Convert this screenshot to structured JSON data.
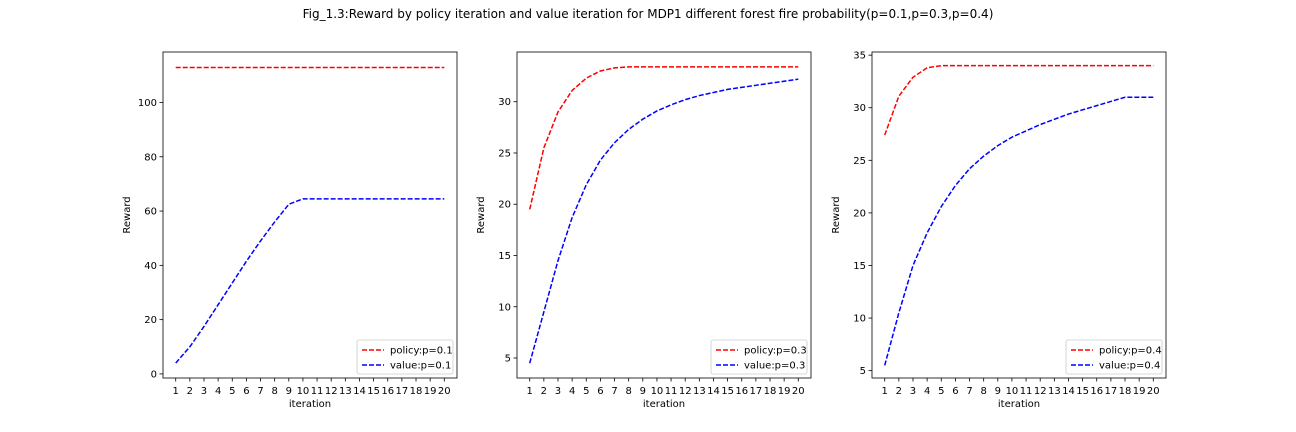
{
  "figure": {
    "title": "Fig_1.3:Reward by policy iteration and value iteration for MDP1 different forest fire probability(p=0.1,p=0.3,p=0.4)"
  },
  "chart_data": [
    {
      "type": "line",
      "xlabel": "iteration",
      "ylabel": "Reward",
      "x": [
        1,
        2,
        3,
        4,
        5,
        6,
        7,
        8,
        9,
        10,
        11,
        12,
        13,
        14,
        15,
        16,
        17,
        18,
        19,
        20
      ],
      "xticks": [
        "1",
        "2",
        "3",
        "4",
        "5",
        "6",
        "7",
        "8",
        "9",
        "10",
        "11",
        "12",
        "13",
        "14",
        "15",
        "16",
        "17",
        "18",
        "19",
        "20"
      ],
      "xlim": [
        0.1,
        20.9
      ],
      "ylim": [
        -1.5,
        118.6
      ],
      "yticks": [
        0,
        20,
        40,
        60,
        80,
        100
      ],
      "legend": "lower-right",
      "series": [
        {
          "name": "policy:p=0.1",
          "color": "#ff0000",
          "values": [
            112.9,
            112.9,
            112.9,
            112.9,
            112.9,
            112.9,
            112.9,
            112.9,
            112.9,
            112.9,
            112.9,
            112.9,
            112.9,
            112.9,
            112.9,
            112.9,
            112.9,
            112.9,
            112.9,
            112.9
          ]
        },
        {
          "name": "value:p=0.1",
          "color": "#0000ff",
          "values": [
            4.0,
            10.0,
            17.5,
            25.5,
            33.5,
            41.5,
            49.0,
            56.0,
            62.5,
            64.5,
            64.5,
            64.5,
            64.5,
            64.5,
            64.5,
            64.5,
            64.5,
            64.5,
            64.5,
            64.5
          ]
        }
      ]
    },
    {
      "type": "line",
      "xlabel": "iteration",
      "ylabel": "Reward",
      "x": [
        1,
        2,
        3,
        4,
        5,
        6,
        7,
        8,
        9,
        10,
        11,
        12,
        13,
        14,
        15,
        16,
        17,
        18,
        19,
        20
      ],
      "xticks": [
        "1",
        "2",
        "3",
        "4",
        "5",
        "6",
        "7",
        "8",
        "9",
        "10",
        "11",
        "12",
        "13",
        "14",
        "15",
        "16",
        "17",
        "18",
        "19",
        "20"
      ],
      "xlim": [
        0.1,
        20.9
      ],
      "ylim": [
        3.05,
        34.85
      ],
      "yticks": [
        5,
        10,
        15,
        20,
        25,
        30
      ],
      "legend": "lower-right",
      "series": [
        {
          "name": "policy:p=0.3",
          "color": "#ff0000",
          "values": [
            19.5,
            25.5,
            29.0,
            31.1,
            32.3,
            33.0,
            33.3,
            33.4,
            33.4,
            33.4,
            33.4,
            33.4,
            33.4,
            33.4,
            33.4,
            33.4,
            33.4,
            33.4,
            33.4,
            33.4
          ]
        },
        {
          "name": "value:p=0.3",
          "color": "#0000ff",
          "values": [
            4.5,
            9.5,
            14.5,
            18.7,
            21.9,
            24.3,
            26.0,
            27.3,
            28.3,
            29.1,
            29.7,
            30.2,
            30.6,
            30.9,
            31.2,
            31.4,
            31.6,
            31.8,
            32.0,
            32.2
          ]
        }
      ]
    },
    {
      "type": "line",
      "xlabel": "iteration",
      "ylabel": "Reward",
      "x": [
        1,
        2,
        3,
        4,
        5,
        6,
        7,
        8,
        9,
        10,
        11,
        12,
        13,
        14,
        15,
        16,
        17,
        18,
        19,
        20
      ],
      "xticks": [
        "1",
        "2",
        "3",
        "4",
        "5",
        "6",
        "7",
        "8",
        "9",
        "10",
        "11",
        "12",
        "13",
        "14",
        "15",
        "16",
        "17",
        "18",
        "19",
        "20"
      ],
      "xlim": [
        0.1,
        20.9
      ],
      "ylim": [
        4.3,
        35.3
      ],
      "yticks": [
        5,
        10,
        15,
        20,
        25,
        30,
        35
      ],
      "legend": "lower-right",
      "series": [
        {
          "name": "policy:p=0.4",
          "color": "#ff0000",
          "values": [
            27.4,
            31.1,
            32.9,
            33.8,
            34.0,
            34.0,
            34.0,
            34.0,
            34.0,
            34.0,
            34.0,
            34.0,
            34.0,
            34.0,
            34.0,
            34.0,
            34.0,
            34.0,
            34.0,
            34.0
          ]
        },
        {
          "name": "value:p=0.4",
          "color": "#0000ff",
          "values": [
            5.5,
            10.5,
            15.0,
            18.1,
            20.6,
            22.6,
            24.2,
            25.4,
            26.4,
            27.2,
            27.8,
            28.4,
            28.9,
            29.4,
            29.8,
            30.2,
            30.6,
            31.0,
            31.0,
            31.0
          ]
        }
      ]
    }
  ]
}
